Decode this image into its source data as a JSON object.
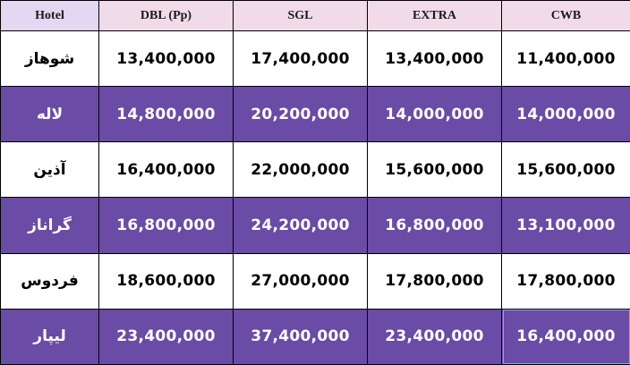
{
  "columns": {
    "hotel": "Hotel",
    "dbl": "DBL (Pp)",
    "sgl": "SGL",
    "extra": "EXTRA",
    "cwb": "CWB"
  },
  "rows": [
    {
      "hotel": "شوهاز",
      "dbl": "13,400,000",
      "sgl": "17,400,000",
      "extra": "13,400,000",
      "cwb": "11,400,000"
    },
    {
      "hotel": "لاله",
      "dbl": "14,800,000",
      "sgl": "20,200,000",
      "extra": "14,000,000",
      "cwb": "14,000,000"
    },
    {
      "hotel": "آذین",
      "dbl": "16,400,000",
      "sgl": "22,000,000",
      "extra": "15,600,000",
      "cwb": "15,600,000"
    },
    {
      "hotel": "گراناز",
      "dbl": "16,800,000",
      "sgl": "24,200,000",
      "extra": "16,800,000",
      "cwb": "13,100,000"
    },
    {
      "hotel": "فردوس",
      "dbl": "18,600,000",
      "sgl": "27,000,000",
      "extra": "17,800,000",
      "cwb": "17,800,000"
    },
    {
      "hotel": "لیپار",
      "dbl": "23,400,000",
      "sgl": "37,400,000",
      "extra": "23,400,000",
      "cwb": "16,400,000"
    }
  ],
  "colors": {
    "header_bg": "#f2dbe8",
    "header_hotel_bg": "#e3d7f2",
    "row_light_bg": "#ffffff",
    "row_dark_bg": "#6a4ba6",
    "border": "#000000"
  }
}
